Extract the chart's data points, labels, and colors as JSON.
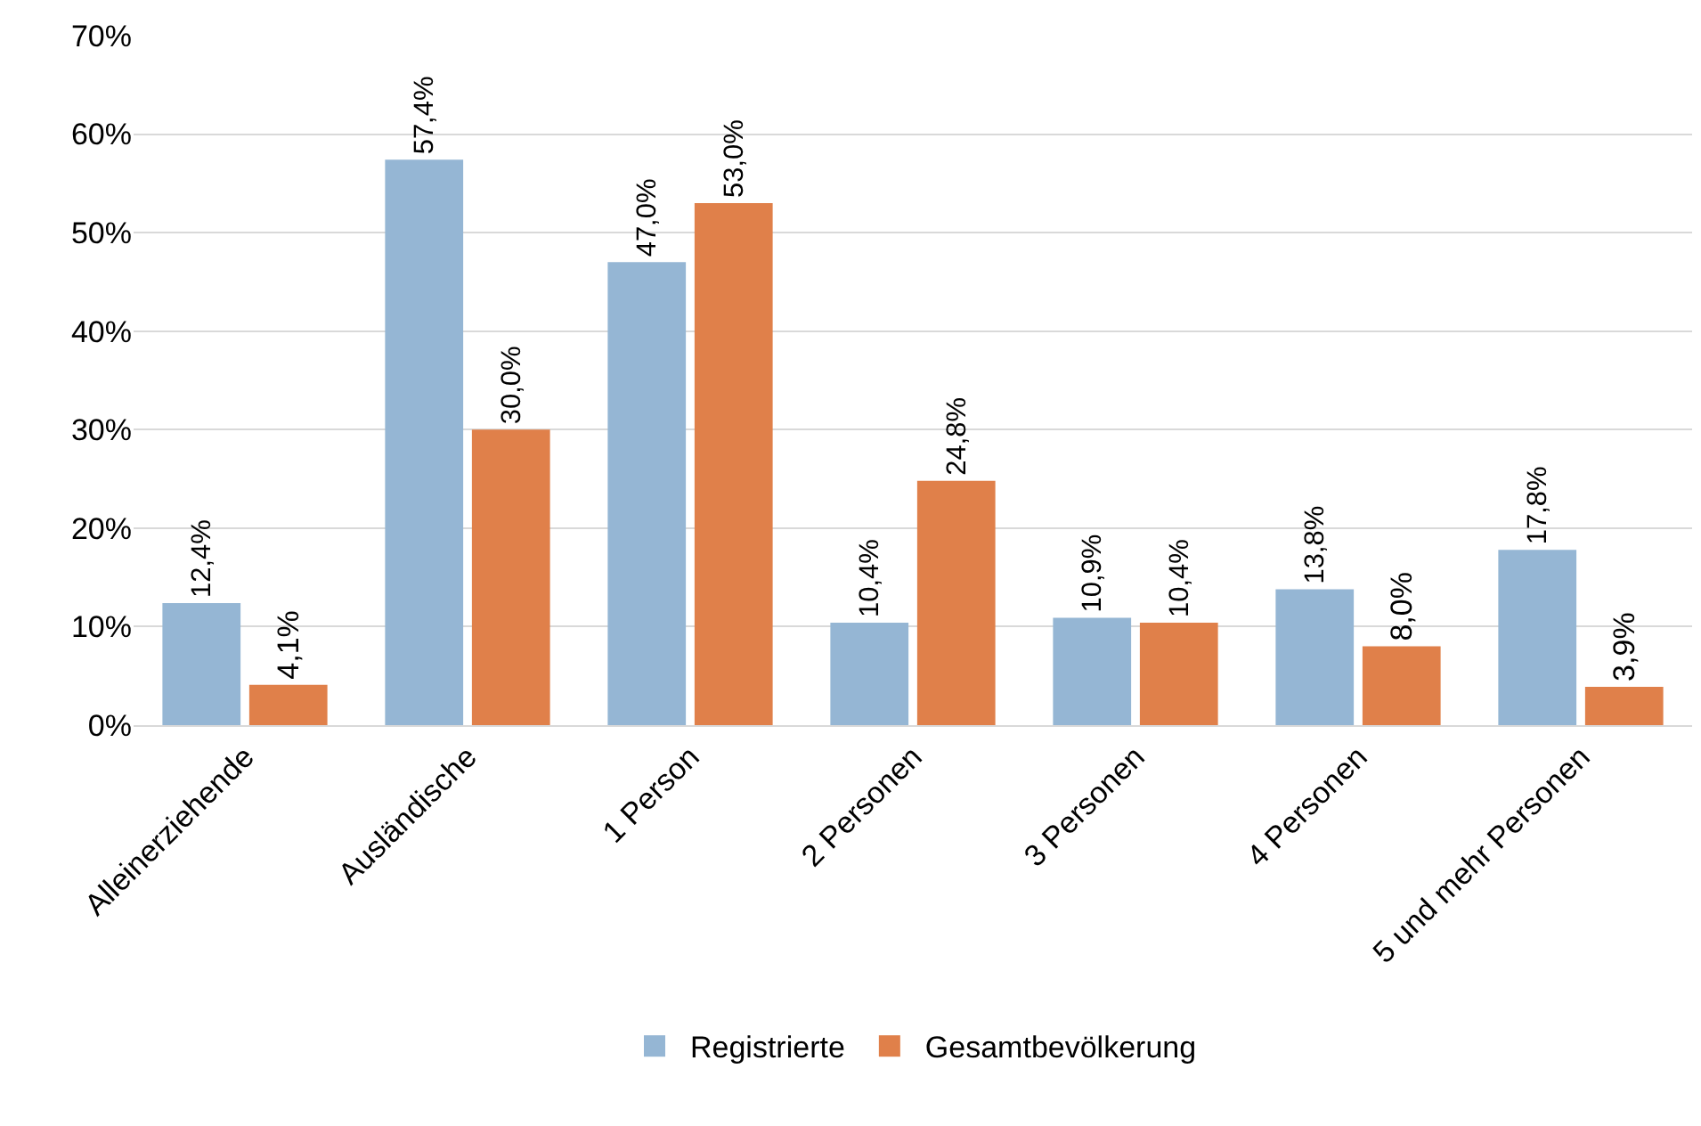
{
  "chart_data": {
    "type": "bar",
    "categories": [
      "Alleinerziehende",
      "Ausländische",
      "1 Person",
      "2 Personen",
      "3 Personen",
      "4 Personen",
      "5 und mehr Personen"
    ],
    "series": [
      {
        "name": "Registrierte",
        "color": "#95b6d4",
        "values": [
          12.4,
          57.4,
          47.0,
          10.4,
          10.9,
          13.8,
          17.8
        ],
        "value_labels": [
          "12,4%",
          "57,4%",
          "47,0%",
          "10,4%",
          "10,9%",
          "13,8%",
          "17,8%"
        ]
      },
      {
        "name": "Gesamtbevölkerung",
        "color": "#e0804a",
        "values": [
          4.1,
          30.0,
          53.0,
          24.8,
          10.4,
          8.0,
          3.9
        ],
        "value_labels": [
          "4,1%",
          "30,0%",
          "53,0%",
          "24,8%",
          "10,4%",
          "8,0%",
          "3,9%"
        ]
      }
    ],
    "ylim": [
      0,
      70
    ],
    "yticks": [
      {
        "value": 0,
        "label": "0%"
      },
      {
        "value": 10,
        "label": "10%"
      },
      {
        "value": 20,
        "label": "20%"
      },
      {
        "value": 30,
        "label": "30%"
      },
      {
        "value": 40,
        "label": "40%"
      },
      {
        "value": 50,
        "label": "50%"
      },
      {
        "value": 60,
        "label": "60%"
      },
      {
        "value": 70,
        "label": "70%"
      }
    ],
    "grid": "y",
    "legend": "bottom"
  }
}
